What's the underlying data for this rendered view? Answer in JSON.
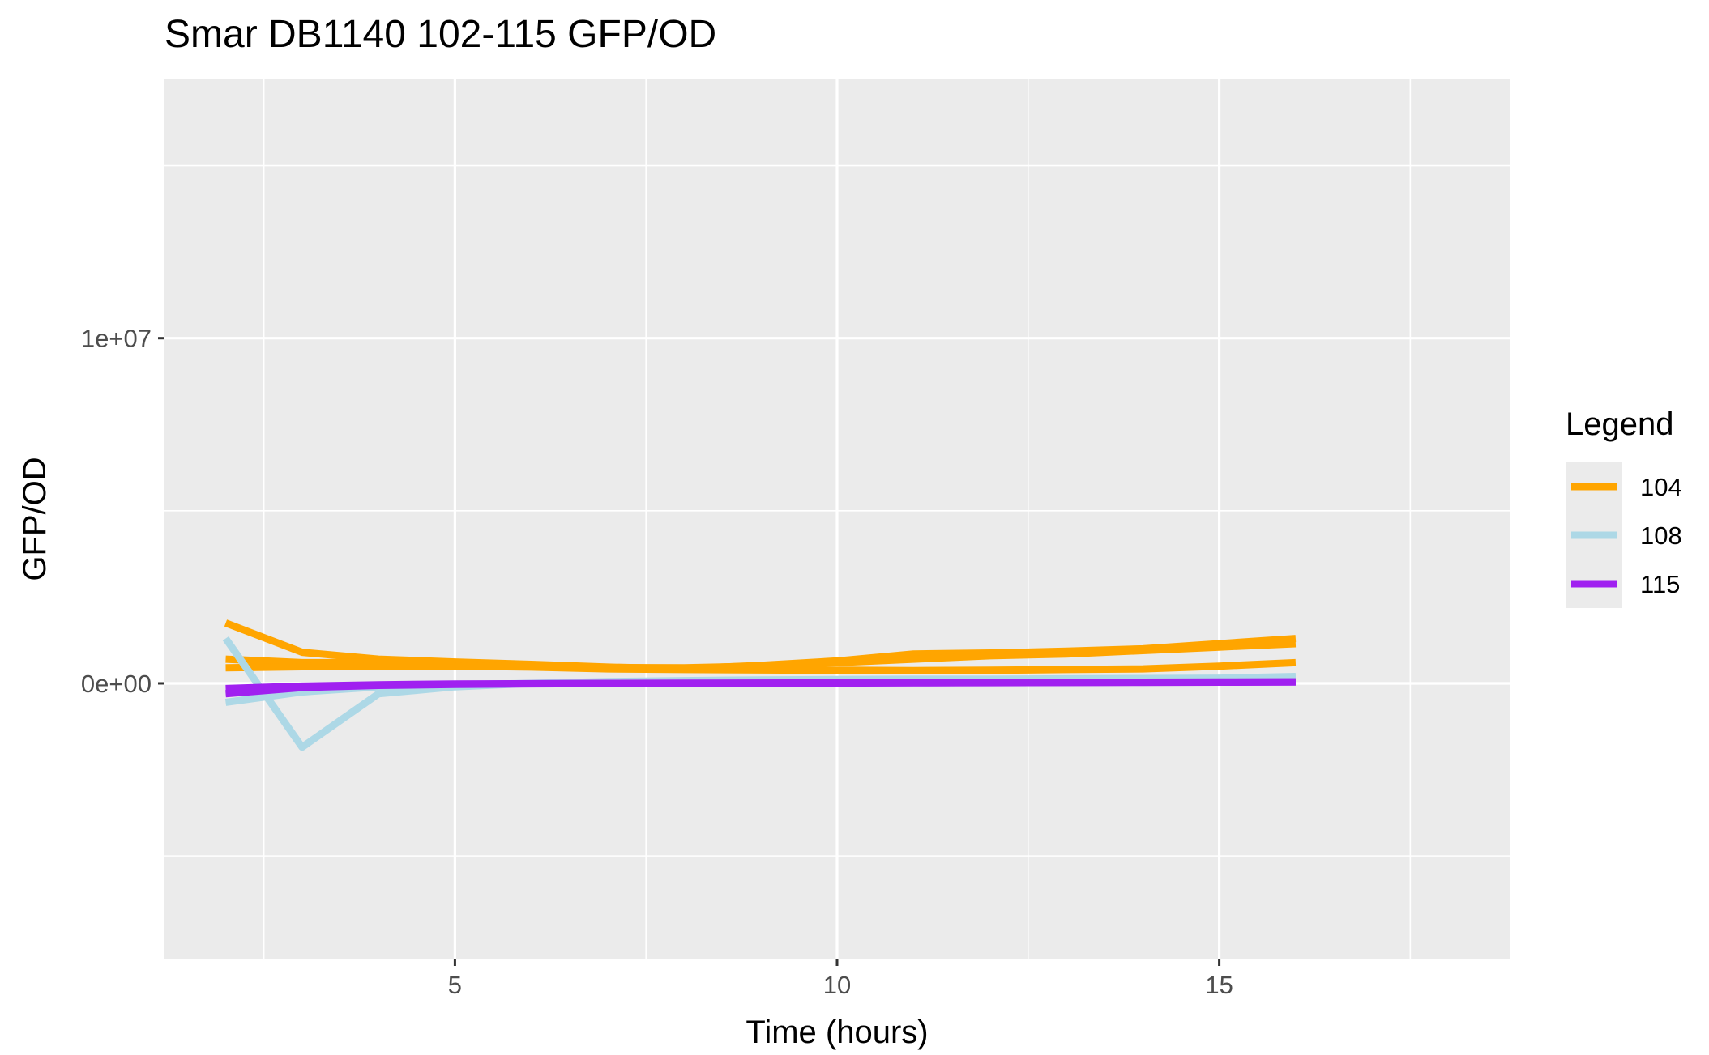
{
  "chart_data": {
    "type": "line",
    "title": "Smar DB1140 102-115 GFP/OD",
    "xlabel": "Time (hours)",
    "ylabel": "GFP/OD",
    "xlim": [
      1.2,
      18.8
    ],
    "ylim": [
      -8000000,
      17500000
    ],
    "x_ticks": [
      5,
      10,
      15
    ],
    "x_tick_labels": [
      "5",
      "10",
      "15"
    ],
    "y_ticks": [
      0,
      10000000
    ],
    "y_tick_labels": [
      "0e+00",
      "1e+07"
    ],
    "grid": true,
    "panel_background": "#ebebeb",
    "legend": {
      "title": "Legend",
      "position": "right",
      "entries": [
        {
          "label": "104",
          "color": "#ffa500"
        },
        {
          "label": "108",
          "color": "#add8e6"
        },
        {
          "label": "115",
          "color": "#a020f0"
        }
      ]
    },
    "series": [
      {
        "name": "104",
        "color": "#ffa500",
        "x": [
          2,
          3,
          4,
          5,
          6,
          7,
          8,
          9,
          10,
          11,
          12,
          13,
          14,
          15,
          16
        ],
        "y": [
          1750000,
          900000,
          700000,
          620000,
          550000,
          470000,
          420000,
          520000,
          650000,
          850000,
          880000,
          930000,
          1000000,
          1150000,
          1300000
        ]
      },
      {
        "name": "104",
        "color": "#ffa500",
        "x": [
          2,
          3,
          4,
          5,
          6,
          7,
          8,
          9,
          10,
          11,
          12,
          13,
          14,
          15,
          16
        ],
        "y": [
          700000,
          600000,
          600000,
          560000,
          520000,
          460000,
          450000,
          500000,
          600000,
          700000,
          800000,
          850000,
          950000,
          1050000,
          1150000
        ]
      },
      {
        "name": "104",
        "color": "#ffa500",
        "x": [
          2,
          3,
          4,
          5,
          6,
          7,
          8,
          9,
          10,
          11,
          12,
          13,
          14,
          15,
          16
        ],
        "y": [
          450000,
          480000,
          500000,
          500000,
          470000,
          420000,
          400000,
          390000,
          380000,
          370000,
          380000,
          400000,
          420000,
          500000,
          600000
        ]
      },
      {
        "name": "108",
        "color": "#add8e6",
        "x": [
          2,
          3,
          4,
          5,
          6,
          7,
          8,
          9,
          10,
          11,
          12,
          13,
          14,
          15,
          16
        ],
        "y": [
          1300000,
          -1850000,
          -300000,
          -100000,
          0,
          50000,
          80000,
          100000,
          110000,
          120000,
          120000,
          130000,
          140000,
          150000,
          200000
        ]
      },
      {
        "name": "108",
        "color": "#add8e6",
        "x": [
          2,
          3,
          4,
          5,
          6,
          7,
          8,
          9,
          10,
          11,
          12,
          13,
          14,
          15,
          16
        ],
        "y": [
          -550000,
          -250000,
          -100000,
          -40000,
          0,
          20000,
          40000,
          60000,
          70000,
          80000,
          90000,
          100000,
          110000,
          120000,
          150000
        ]
      },
      {
        "name": "115",
        "color": "#a020f0",
        "x": [
          2,
          3,
          4,
          5,
          6,
          7,
          8,
          9,
          10,
          11,
          12,
          13,
          14,
          15,
          16
        ],
        "y": [
          -150000,
          -80000,
          -40000,
          -20000,
          -10000,
          0,
          5000,
          10000,
          15000,
          20000,
          25000,
          30000,
          35000,
          40000,
          45000
        ]
      },
      {
        "name": "115",
        "color": "#a020f0",
        "x": [
          2,
          3,
          4,
          5,
          6,
          7,
          8,
          9,
          10,
          11,
          12,
          13,
          14,
          15,
          16
        ],
        "y": [
          -300000,
          -120000,
          -60000,
          -30000,
          -15000,
          -5000,
          0,
          5000,
          10000,
          15000,
          20000,
          25000,
          30000,
          35000,
          40000
        ]
      }
    ]
  }
}
